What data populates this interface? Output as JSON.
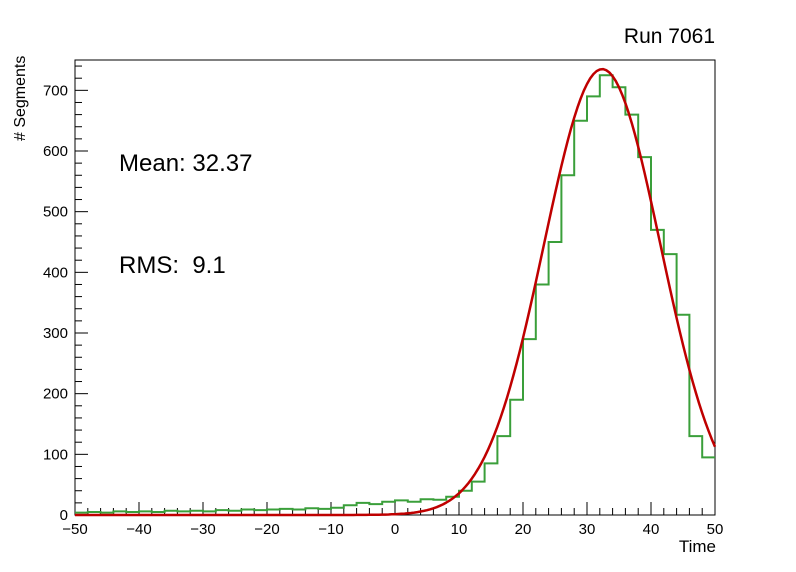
{
  "title": "Run 7061",
  "stats": {
    "mean_label": "Mean: 32.37",
    "rms_label": "RMS:  9.1"
  },
  "axes": {
    "x_label": "Time",
    "y_label": "# Segments"
  },
  "chart_data": {
    "type": "bar",
    "subtype": "histogram-with-gaussian-fit",
    "title": "Run 7061",
    "xlabel": "Time",
    "ylabel": "# Segments",
    "xlim": [
      -50,
      50
    ],
    "ylim": [
      0,
      750
    ],
    "grid": false,
    "frame": true,
    "legend_position": "none",
    "x_major_ticks": [
      -50,
      -40,
      -30,
      -20,
      -10,
      0,
      10,
      20,
      30,
      40,
      50
    ],
    "x_tick_labels": [
      "−50",
      "−40",
      "−30",
      "−20",
      "−10",
      "0",
      "10",
      "20",
      "30",
      "40",
      "50"
    ],
    "x_minor_step": 2,
    "y_major_ticks": [
      0,
      100,
      200,
      300,
      400,
      500,
      600,
      700
    ],
    "y_tick_labels": [
      "0",
      "100",
      "200",
      "300",
      "400",
      "500",
      "600",
      "700"
    ],
    "y_minor_step": 20,
    "annotations": [
      {
        "text": "Mean: 32.37"
      },
      {
        "text": "RMS:  9.1"
      }
    ],
    "histogram": {
      "name": "time-distribution",
      "color": "#3a9f3a",
      "line_width": 2,
      "bin_start": -50,
      "bin_width": 2,
      "counts": [
        4,
        5,
        4,
        6,
        5,
        6,
        5,
        7,
        6,
        7,
        6,
        8,
        7,
        9,
        8,
        9,
        10,
        9,
        11,
        10,
        12,
        16,
        20,
        18,
        22,
        24,
        22,
        26,
        25,
        30,
        40,
        55,
        85,
        130,
        190,
        290,
        380,
        450,
        560,
        650,
        690,
        725,
        705,
        660,
        590,
        470,
        430,
        330,
        130,
        95
      ]
    },
    "fit": {
      "name": "gaussian-fit",
      "color": "#bf0000",
      "line_width": 2.5,
      "shape": "gaussian",
      "amplitude": 735,
      "mean": 32.37,
      "sigma": 9.1
    }
  }
}
